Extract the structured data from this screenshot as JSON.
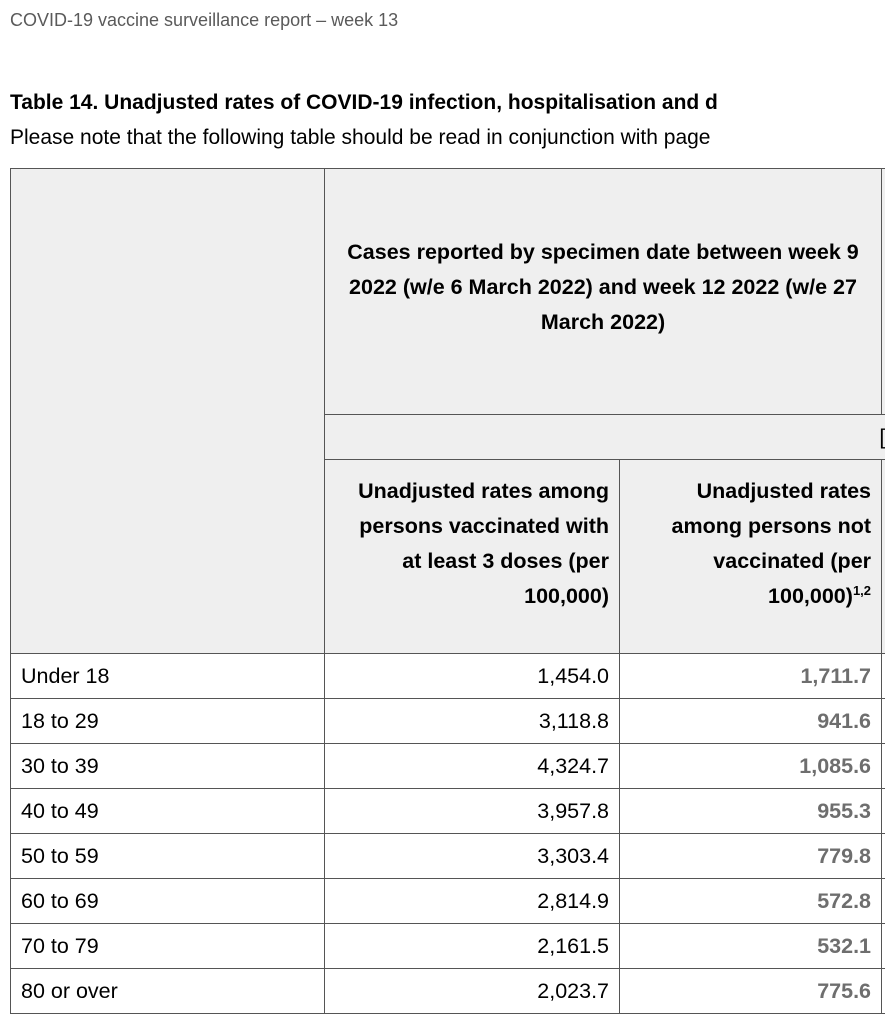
{
  "header": {
    "running_title": "COVID-19 vaccine surveillance report – week 13"
  },
  "table": {
    "title": "Table 14. Unadjusted rates of COVID-19 infection, hospitalisation and d",
    "note": "Please note that the following table should be read in conjunction with page",
    "group_header": "Cases reported by specimen date between week 9 2022 (w/e 6 March 2022) and week 12 2022 (w/e 27 March 2022)",
    "sub_header": "[see",
    "col1_header": "Unadjusted rates among persons vaccinated with at least 3 doses (per 100,000)",
    "col2_header": "Unadjusted rates among persons not vaccinated (per 100,000)",
    "col2_sup": "1,2",
    "rows": [
      {
        "age": "Under 18",
        "vaccinated": "1,454.0",
        "unvaccinated": "1,711.7"
      },
      {
        "age": "18 to 29",
        "vaccinated": "3,118.8",
        "unvaccinated": "941.6"
      },
      {
        "age": "30 to 39",
        "vaccinated": "4,324.7",
        "unvaccinated": "1,085.6"
      },
      {
        "age": "40 to 49",
        "vaccinated": "3,957.8",
        "unvaccinated": "955.3"
      },
      {
        "age": "50 to 59",
        "vaccinated": "3,303.4",
        "unvaccinated": "779.8"
      },
      {
        "age": "60 to 69",
        "vaccinated": "2,814.9",
        "unvaccinated": "572.8"
      },
      {
        "age": "70 to 79",
        "vaccinated": "2,161.5",
        "unvaccinated": "532.1"
      },
      {
        "age": "80 or over",
        "vaccinated": "2,023.7",
        "unvaccinated": "775.6"
      }
    ]
  }
}
